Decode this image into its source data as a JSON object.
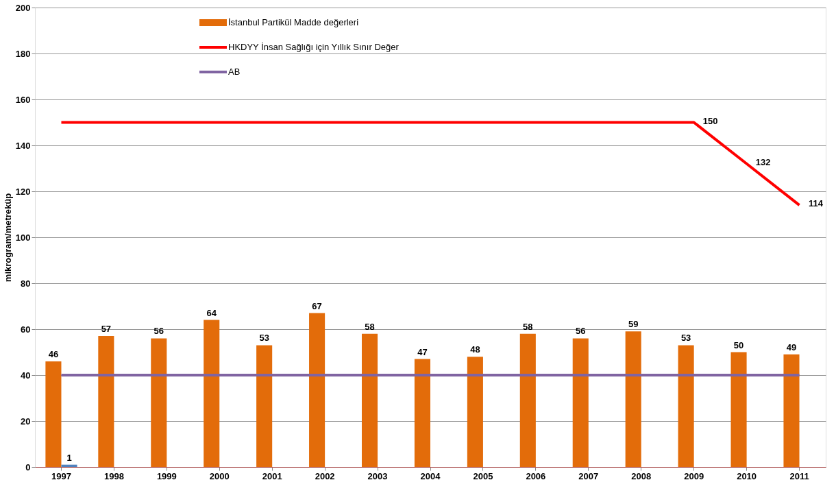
{
  "chart_data": {
    "type": "bar",
    "ylabel": "mikrogram/metreküp",
    "categories": [
      "1997",
      "1998",
      "1999",
      "2000",
      "2001",
      "2002",
      "2003",
      "2004",
      "2005",
      "2006",
      "2007",
      "2008",
      "2009",
      "2010",
      "2011"
    ],
    "series": [
      {
        "name": "İstanbul Partikül Madde değerleri",
        "color": "#e36c0a",
        "values": [
          46,
          57,
          56,
          64,
          53,
          67,
          58,
          47,
          48,
          58,
          56,
          59,
          53,
          50,
          49
        ],
        "value_labels": [
          "46",
          "57",
          "56",
          "64",
          "53",
          "67",
          "58",
          "47",
          "48",
          "58",
          "56",
          "59",
          "53",
          "50",
          "49"
        ]
      },
      {
        "color": "#4f81bd",
        "values": [
          1,
          null,
          null,
          null,
          null,
          null,
          null,
          null,
          null,
          null,
          null,
          null,
          null,
          null,
          null
        ],
        "value_labels": [
          "1",
          null,
          null,
          null,
          null,
          null,
          null,
          null,
          null,
          null,
          null,
          null,
          null,
          null,
          null
        ]
      },
      {
        "name": "HKDYY İnsan Sağlığı için Yıllık Sınır Değer",
        "type": "line",
        "color": "#ff0000",
        "values": [
          150,
          150,
          150,
          150,
          150,
          150,
          150,
          150,
          150,
          150,
          150,
          150,
          150,
          132,
          114
        ],
        "value_labels": [
          null,
          null,
          null,
          null,
          null,
          null,
          null,
          null,
          null,
          null,
          null,
          null,
          "150",
          "132",
          "114"
        ]
      },
      {
        "name": "AB",
        "type": "line",
        "color": "#8064a2",
        "values": [
          40,
          40,
          40,
          40,
          40,
          40,
          40,
          40,
          40,
          40,
          40,
          40,
          40,
          40,
          40
        ]
      }
    ],
    "ylim": [
      0,
      200
    ],
    "yticks": [
      0,
      20,
      40,
      60,
      80,
      100,
      120,
      140,
      160,
      180,
      200
    ],
    "grid": "y",
    "legend": "top left"
  }
}
